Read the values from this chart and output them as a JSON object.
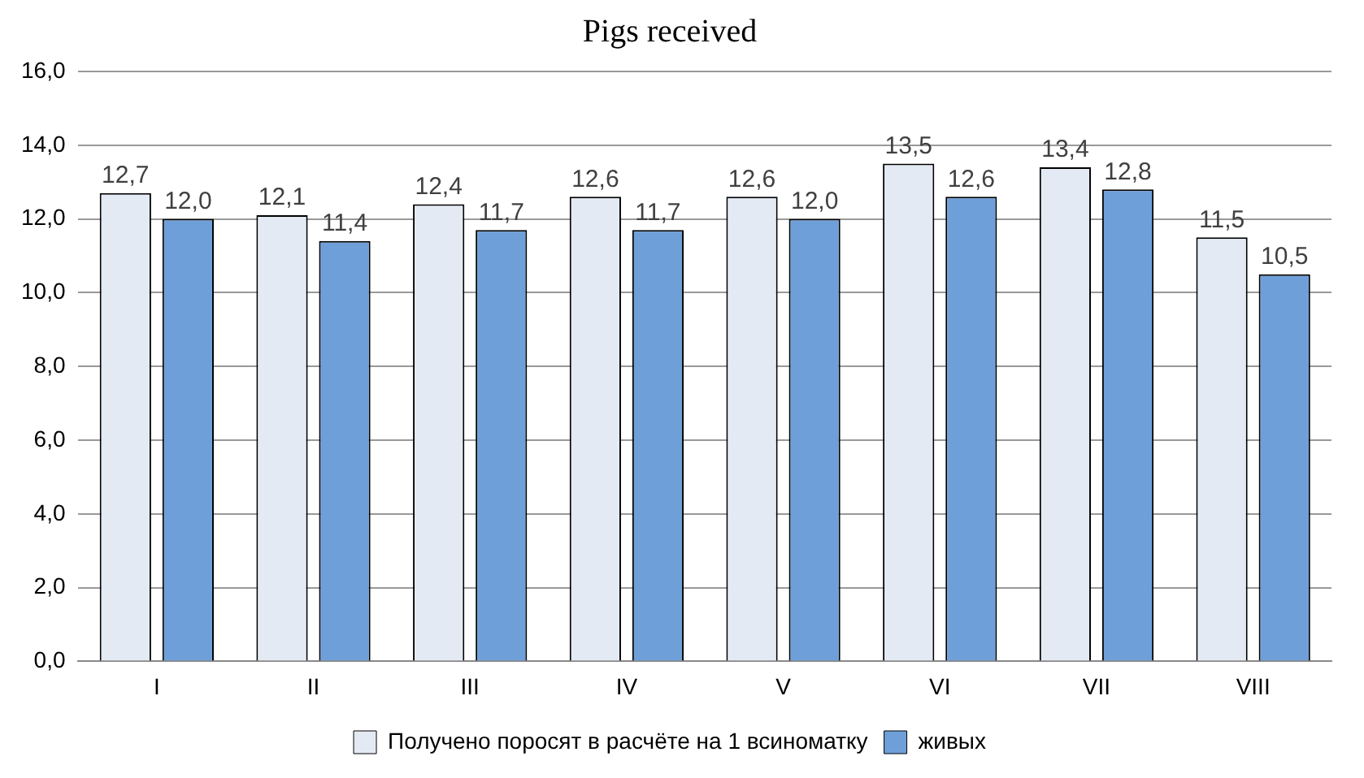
{
  "chart_data": {
    "type": "bar",
    "title": "Pigs received",
    "categories": [
      "I",
      "II",
      "III",
      "IV",
      "V",
      "VI",
      "VII",
      "VIII"
    ],
    "series": [
      {
        "name": "Получено поросят в расчёте на 1 всиноматку",
        "color": "#e3eaf4",
        "values": [
          12.7,
          12.1,
          12.4,
          12.6,
          12.6,
          13.5,
          13.4,
          11.5
        ],
        "value_labels": [
          "12,7",
          "12,1",
          "12,4",
          "12,6",
          "12,6",
          "13,5",
          "13,4",
          "11,5"
        ]
      },
      {
        "name": "живых",
        "color": "#6f9fd8",
        "values": [
          12.0,
          11.4,
          11.7,
          11.7,
          12.0,
          12.6,
          12.8,
          10.5
        ],
        "value_labels": [
          "12,0",
          "11,4",
          "11,7",
          "11,7",
          "12,0",
          "12,6",
          "12,8",
          "10,5"
        ]
      }
    ],
    "ylim": [
      0,
      16
    ],
    "yticks": [
      {
        "value": 0,
        "label": "0,0"
      },
      {
        "value": 2,
        "label": "2,0"
      },
      {
        "value": 4,
        "label": "4,0"
      },
      {
        "value": 6,
        "label": "6,0"
      },
      {
        "value": 8,
        "label": "8,0"
      },
      {
        "value": 10,
        "label": "10,0"
      },
      {
        "value": 12,
        "label": "12,0"
      },
      {
        "value": 14,
        "label": "14,0"
      },
      {
        "value": 16,
        "label": "16,0"
      }
    ],
    "grid": "y",
    "legend": "bottom"
  }
}
